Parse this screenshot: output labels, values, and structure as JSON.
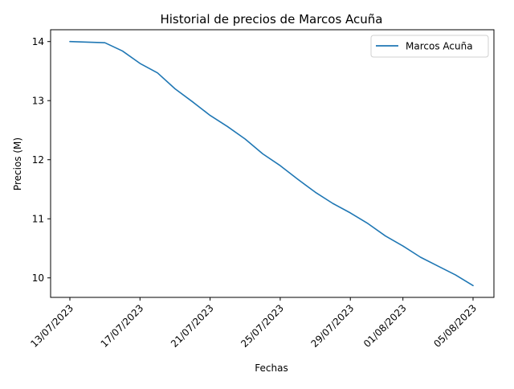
{
  "chart_data": {
    "type": "line",
    "title": "Historial de precios de Marcos Acuña",
    "xlabel": "Fechas",
    "ylabel": "Precios (M)",
    "x": [
      "13/07/2023",
      "14/07/2023",
      "15/07/2023",
      "16/07/2023",
      "17/07/2023",
      "18/07/2023",
      "19/07/2023",
      "20/07/2023",
      "21/07/2023",
      "22/07/2023",
      "23/07/2023",
      "24/07/2023",
      "25/07/2023",
      "26/07/2023",
      "27/07/2023",
      "28/07/2023",
      "29/07/2023",
      "30/07/2023",
      "31/07/2023",
      "01/08/2023",
      "02/08/2023",
      "03/08/2023",
      "04/08/2023",
      "05/08/2023"
    ],
    "x_ticks": [
      "13/07/2023",
      "17/07/2023",
      "21/07/2023",
      "25/07/2023",
      "29/07/2023",
      "01/08/2023",
      "05/08/2023"
    ],
    "y_ticks": [
      10,
      11,
      12,
      13,
      14
    ],
    "ylim": [
      9.67,
      14.2
    ],
    "series": [
      {
        "name": "Marcos Acuña",
        "color": "#1f77b4",
        "values": [
          14.0,
          13.99,
          13.98,
          13.84,
          13.63,
          13.47,
          13.2,
          12.98,
          12.75,
          12.56,
          12.35,
          12.1,
          11.9,
          11.67,
          11.45,
          11.26,
          11.1,
          10.92,
          10.71,
          10.54,
          10.35,
          10.2,
          10.05,
          9.87
        ]
      }
    ],
    "legend_position": "top-right",
    "grid": false
  }
}
